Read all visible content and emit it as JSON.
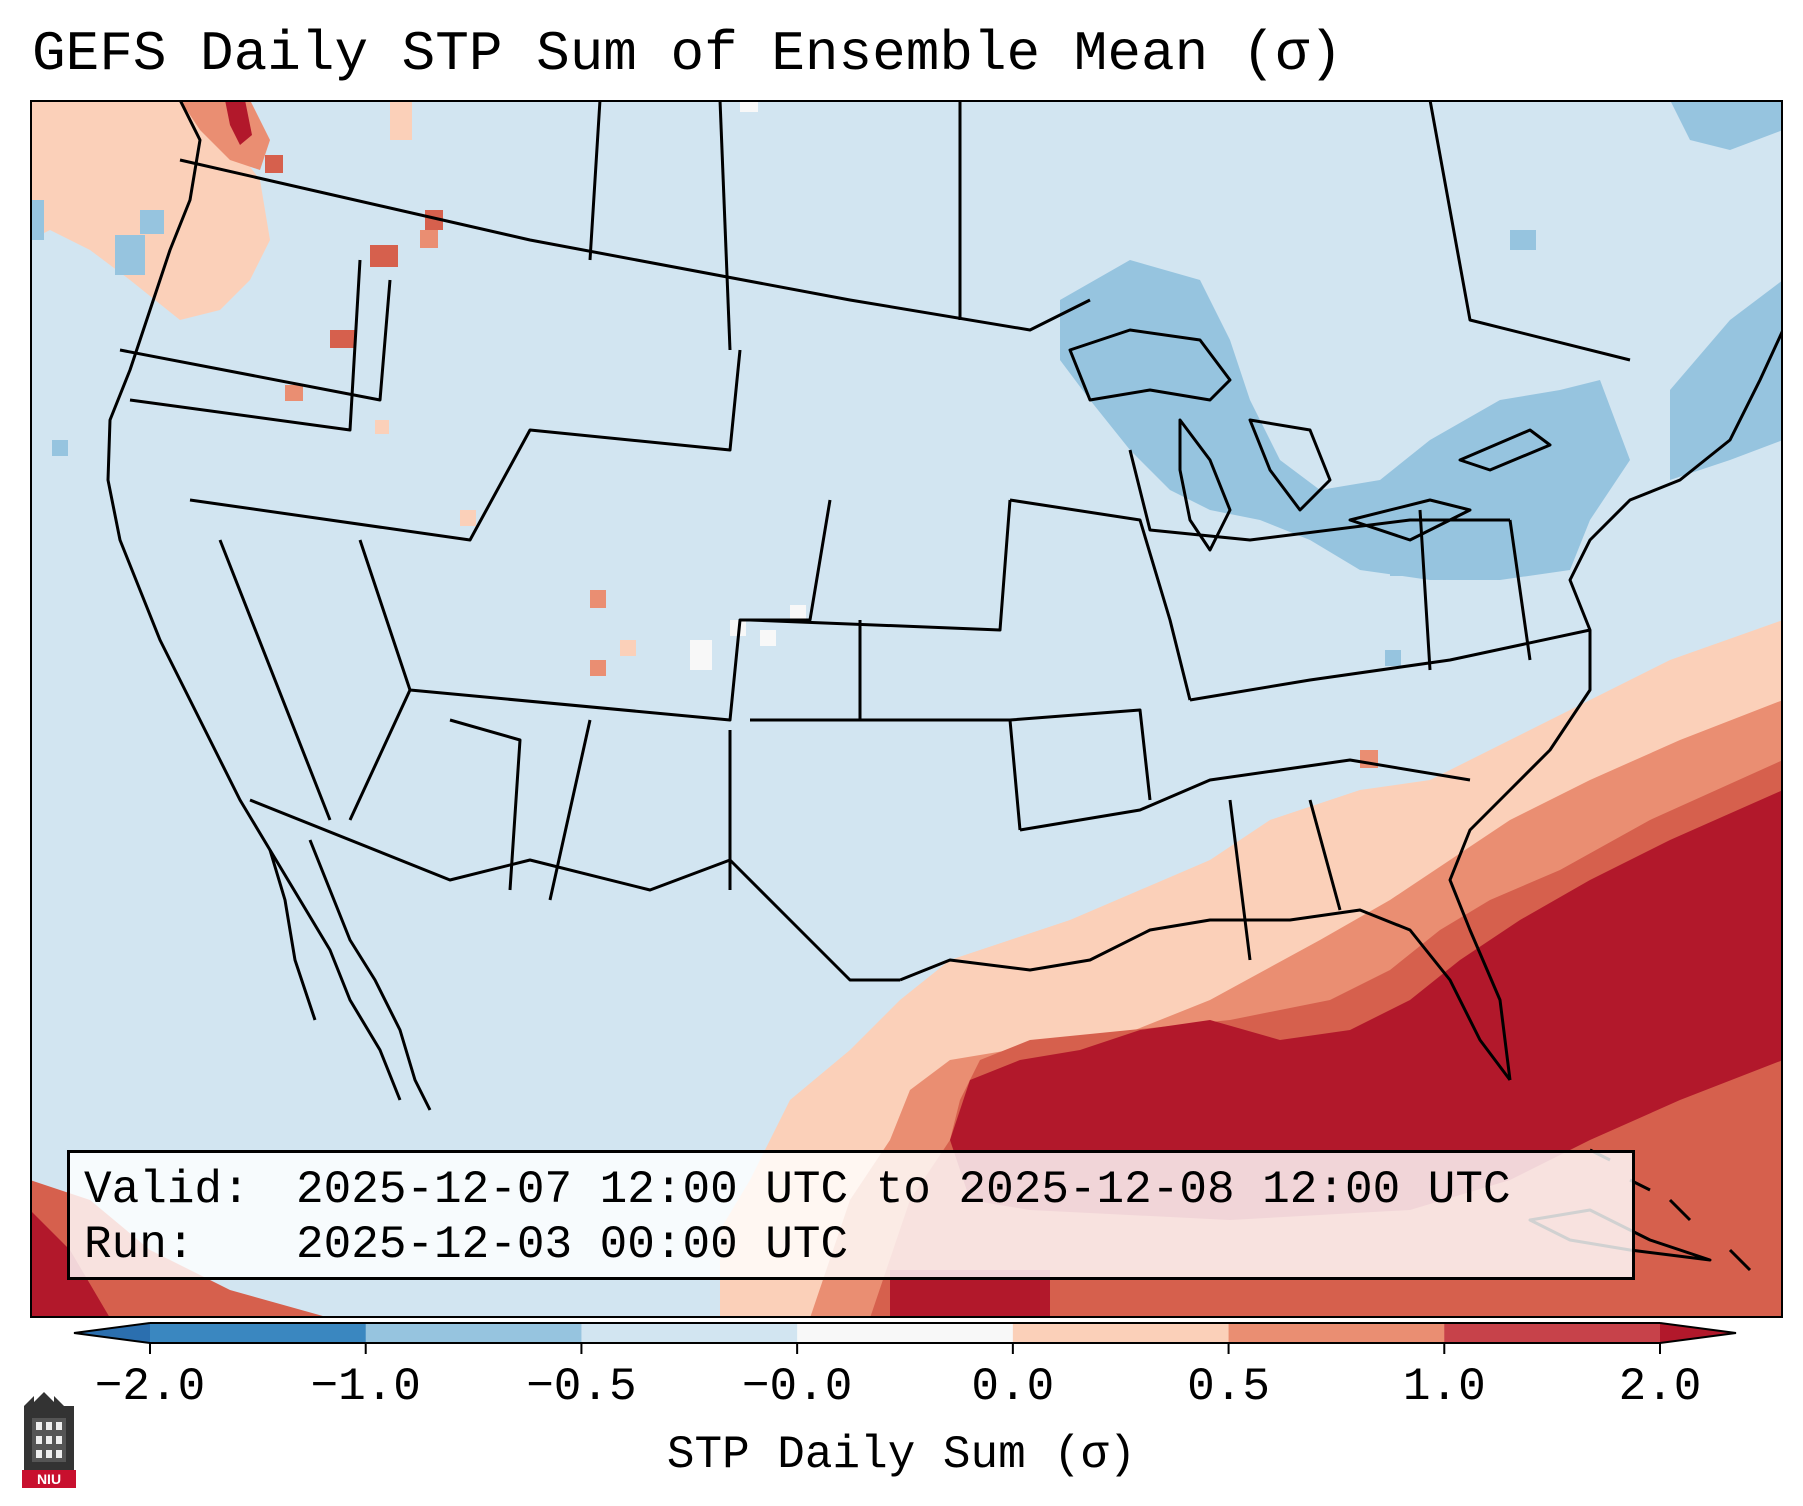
{
  "title": "GEFS Daily STP Sum of Ensemble Mean (σ)",
  "info": {
    "valid_label": "Valid:",
    "valid_value": "2025-12-07 12:00 UTC to 2025-12-08 12:00 UTC",
    "run_label": "Run:",
    "run_value": "2025-12-03 00:00 UTC"
  },
  "colorbar": {
    "label": "STP Daily Sum (σ)",
    "ticks": [
      "−2.0",
      "−1.0",
      "−0.5",
      "−0.0",
      "0.0",
      "0.5",
      "1.0",
      "2.0"
    ],
    "colors": [
      "#3a87c0",
      "#96c4df",
      "#d2e5f1",
      "#f8f8f8",
      "#fbd0b9",
      "#ea8e72",
      "#c7424a"
    ],
    "under_color": "#2b6faf",
    "over_color": "#b2182b",
    "extend": "both"
  },
  "colors": {
    "background": "#d2e5f1",
    "neg_light": "#96c4df",
    "pos_light": "#fbd0b9",
    "pos_mid": "#ea8e72",
    "pos_high": "#d6604d",
    "pos_max": "#b2182b",
    "borders": "#000000"
  },
  "logo": {
    "text": "NIU"
  }
}
